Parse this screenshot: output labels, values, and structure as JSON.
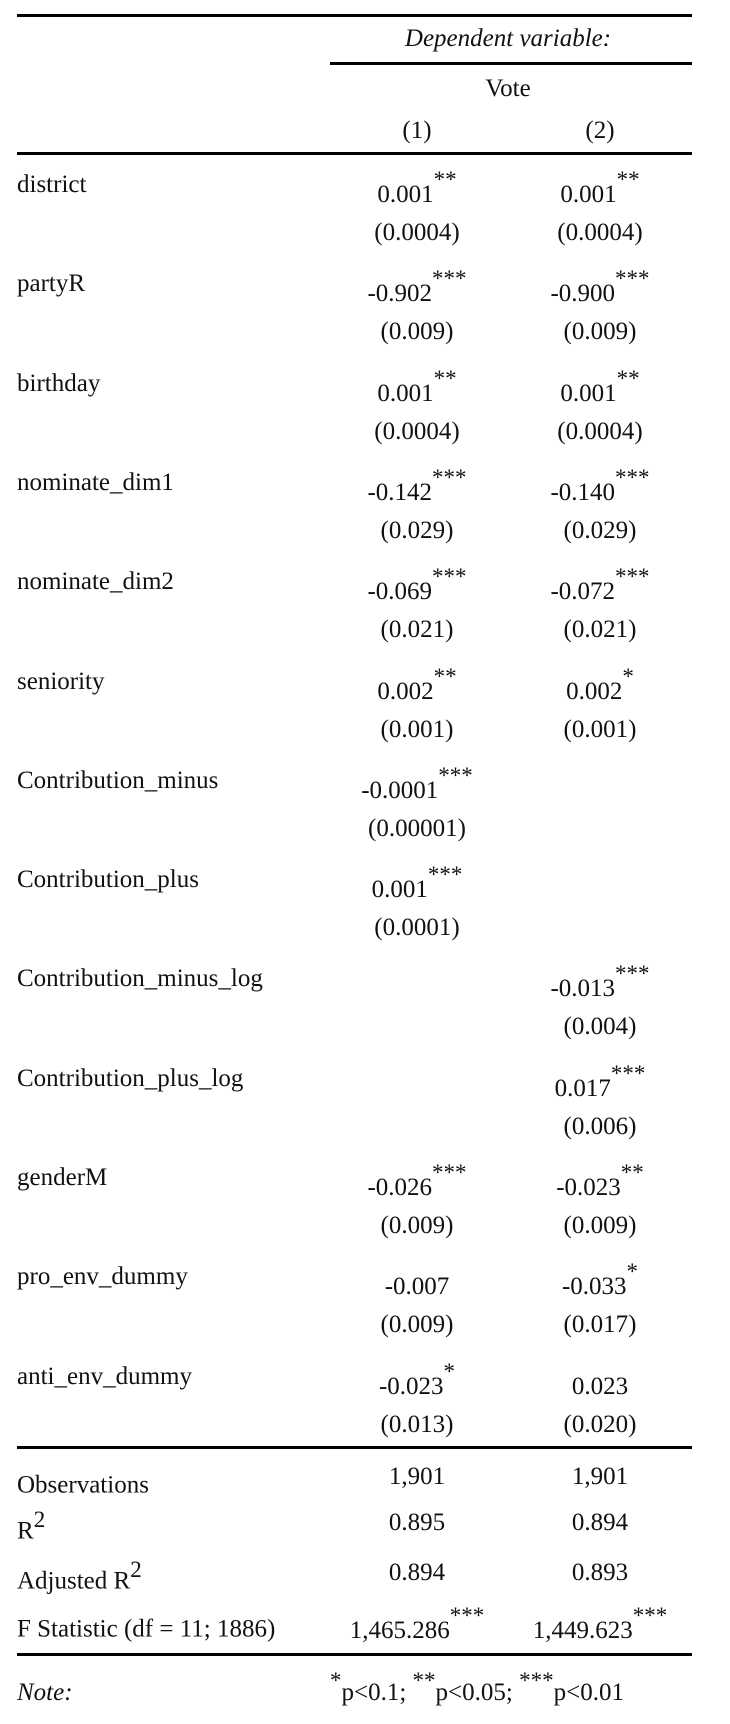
{
  "header": {
    "dependent_variable_label": "Dependent variable:",
    "dependent_variable": "Vote",
    "columns": [
      "(1)",
      "(2)"
    ]
  },
  "rows": [
    {
      "label": "district",
      "col1": {
        "coef": "0.001",
        "stars": "**",
        "se": "(0.0004)"
      },
      "col2": {
        "coef": "0.001",
        "stars": "**",
        "se": "(0.0004)"
      }
    },
    {
      "label": "partyR",
      "col1": {
        "coef": "-0.902",
        "stars": "***",
        "se": "(0.009)"
      },
      "col2": {
        "coef": "-0.900",
        "stars": "***",
        "se": "(0.009)"
      }
    },
    {
      "label": "birthday",
      "col1": {
        "coef": "0.001",
        "stars": "**",
        "se": "(0.0004)"
      },
      "col2": {
        "coef": "0.001",
        "stars": "**",
        "se": "(0.0004)"
      }
    },
    {
      "label": "nominate_dim1",
      "col1": {
        "coef": "-0.142",
        "stars": "***",
        "se": "(0.029)"
      },
      "col2": {
        "coef": "-0.140",
        "stars": "***",
        "se": "(0.029)"
      }
    },
    {
      "label": "nominate_dim2",
      "col1": {
        "coef": "-0.069",
        "stars": "***",
        "se": "(0.021)"
      },
      "col2": {
        "coef": "-0.072",
        "stars": "***",
        "se": "(0.021)"
      }
    },
    {
      "label": "seniority",
      "col1": {
        "coef": "0.002",
        "stars": "**",
        "se": "(0.001)"
      },
      "col2": {
        "coef": "0.002",
        "stars": "*",
        "se": "(0.001)"
      }
    },
    {
      "label": "Contribution_minus",
      "col1": {
        "coef": "-0.0001",
        "stars": "***",
        "se": "(0.00001)"
      },
      "col2": null
    },
    {
      "label": "Contribution_plus",
      "col1": {
        "coef": "0.001",
        "stars": "***",
        "se": "(0.0001)"
      },
      "col2": null
    },
    {
      "label": "Contribution_minus_log",
      "col1": null,
      "col2": {
        "coef": "-0.013",
        "stars": "***",
        "se": "(0.004)"
      }
    },
    {
      "label": "Contribution_plus_log",
      "col1": null,
      "col2": {
        "coef": "0.017",
        "stars": "***",
        "se": "(0.006)"
      }
    },
    {
      "label": "genderM",
      "col1": {
        "coef": "-0.026",
        "stars": "***",
        "se": "(0.009)"
      },
      "col2": {
        "coef": "-0.023",
        "stars": "**",
        "se": "(0.009)"
      }
    },
    {
      "label": "pro_env_dummy",
      "col1": {
        "coef": "-0.007",
        "stars": "",
        "se": "(0.009)"
      },
      "col2": {
        "coef": "-0.033",
        "stars": "*",
        "se": "(0.017)"
      }
    },
    {
      "label": "anti_env_dummy",
      "col1": {
        "coef": "-0.023",
        "stars": "*",
        "se": "(0.013)"
      },
      "col2": {
        "coef": "0.023",
        "stars": "",
        "se": "(0.020)"
      }
    }
  ],
  "stats": [
    {
      "label": "Observations",
      "sup": "",
      "col1": "1,901",
      "col1_stars": "",
      "col2": "1,901",
      "col2_stars": ""
    },
    {
      "label": "R",
      "sup": "2",
      "col1": "0.895",
      "col1_stars": "",
      "col2": "0.894",
      "col2_stars": ""
    },
    {
      "label": "Adjusted R",
      "sup": "2",
      "col1": "0.894",
      "col1_stars": "",
      "col2": "0.893",
      "col2_stars": ""
    },
    {
      "label": "F Statistic (df = 11; 1886)",
      "sup": "",
      "col1": "1,465.286",
      "col1_stars": "***",
      "col2": "1,449.623",
      "col2_stars": "***"
    }
  ],
  "note": {
    "label": "Note:",
    "items": [
      {
        "stars": "*",
        "text": "p<0.1;"
      },
      {
        "stars": "**",
        "text": "p<0.05;"
      },
      {
        "stars": "***",
        "text": "p<0.01"
      }
    ]
  }
}
